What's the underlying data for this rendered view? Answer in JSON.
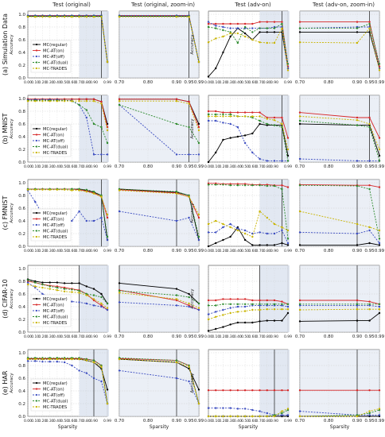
{
  "figure": {
    "column_titles": [
      "Test (original)",
      "Test (original, zoom-in)",
      "Test (adv-on)",
      "Test (adv-on, zoom-in)"
    ],
    "row_labels": [
      "(a) Simulation Data",
      "(b) MNIST",
      "(c) FMNIST",
      "(d) CIFAR-10",
      "(e) HAR"
    ],
    "ylabel": "Accuracy",
    "xlabel": "Sparsity",
    "colors": {
      "regular": "#000000",
      "on": "#d62728",
      "off": "#3b4cc0",
      "dual": "#2e8b2e",
      "trades": "#c8b400"
    }
  },
  "chart_data": {
    "type": "line",
    "x_full": [
      0.0,
      0.1,
      0.2,
      0.3,
      0.4,
      0.5,
      0.6,
      0.7,
      0.8,
      0.9,
      0.95,
      0.99
    ],
    "x_zoom": [
      0.7,
      0.9,
      0.95,
      0.99
    ],
    "xticks_full": [
      "0.00",
      "0.10",
      "0.20",
      "0.30",
      "0.40",
      "0.50",
      "0.60",
      "0.70",
      "0.80",
      "0.90",
      "0.99"
    ],
    "xticks_zoom": [
      "0.70",
      "0.80",
      "0.90",
      "0.95",
      "0.99"
    ],
    "yticks": [
      "0.0",
      "0.2",
      "0.4",
      "0.6",
      "0.8",
      "1.0"
    ],
    "ylim": [
      0,
      1.05
    ],
    "legend": [
      "MC(regular)",
      "MC-AT(on)",
      "MC-AT(off)",
      "MC-AT(dual)",
      "MC-TRADES"
    ],
    "rows": [
      {
        "name": "(a) Simulation Data",
        "vline_full": 0.95,
        "vline_zoom": 0.95,
        "vline_adv": 0.95,
        "vline_advzoom": 0.95,
        "shade_full": [
          0.7,
          0.99
        ],
        "shade_adv": [
          0.7,
          0.99
        ],
        "series": [
          {
            "key": "regular",
            "original": [
              0.97,
              0.97,
              0.97,
              0.97,
              0.97,
              0.97,
              0.97,
              0.97,
              0.97,
              0.97,
              0.97,
              0.25
            ],
            "adv": [
              0.02,
              0.15,
              0.4,
              0.65,
              0.78,
              0.7,
              0.6,
              0.72,
              0.72,
              0.72,
              0.72,
              0.15
            ]
          },
          {
            "key": "on",
            "original": [
              0.98,
              0.98,
              0.98,
              0.98,
              0.98,
              0.98,
              0.98,
              0.98,
              0.98,
              0.98,
              0.98,
              0.25
            ],
            "adv": [
              0.85,
              0.85,
              0.85,
              0.85,
              0.85,
              0.85,
              0.85,
              0.88,
              0.88,
              0.88,
              0.88,
              0.18
            ]
          },
          {
            "key": "off",
            "original": [
              0.98,
              0.98,
              0.98,
              0.98,
              0.98,
              0.98,
              0.98,
              0.98,
              0.98,
              0.98,
              0.98,
              0.25
            ],
            "adv": [
              0.88,
              0.82,
              0.8,
              0.78,
              0.78,
              0.78,
              0.78,
              0.78,
              0.78,
              0.8,
              0.8,
              0.15
            ]
          },
          {
            "key": "dual",
            "original": [
              0.97,
              0.97,
              0.97,
              0.97,
              0.97,
              0.97,
              0.97,
              0.97,
              0.97,
              0.97,
              0.97,
              0.25
            ],
            "adv": [
              0.8,
              0.78,
              0.75,
              0.72,
              0.55,
              0.8,
              0.72,
              0.78,
              0.78,
              0.78,
              0.85,
              0.22
            ]
          },
          {
            "key": "trades",
            "original": [
              0.96,
              0.96,
              0.96,
              0.96,
              0.96,
              0.96,
              0.96,
              0.96,
              0.96,
              0.96,
              0.96,
              0.25
            ],
            "adv": [
              0.56,
              0.62,
              0.65,
              0.7,
              0.7,
              0.65,
              0.6,
              0.56,
              0.55,
              0.55,
              0.78,
              0.12
            ]
          }
        ]
      },
      {
        "name": "(b) MNIST",
        "vline_full": 0.95,
        "vline_zoom": 0.95,
        "vline_adv": 0.95,
        "vline_advzoom": 0.95,
        "shade_full": [
          0.7,
          0.99
        ],
        "shade_adv": [
          0.7,
          0.99
        ],
        "series": [
          {
            "key": "regular",
            "original": [
              0.99,
              0.99,
              0.99,
              0.99,
              0.99,
              0.99,
              0.99,
              0.99,
              0.99,
              0.99,
              0.95,
              0.6
            ],
            "adv": [
              0.0,
              0.15,
              0.35,
              0.38,
              0.4,
              0.42,
              0.45,
              0.6,
              0.58,
              0.58,
              0.58,
              0.1
            ]
          },
          {
            "key": "on",
            "original": [
              0.99,
              0.99,
              0.99,
              0.99,
              0.99,
              0.99,
              0.99,
              0.99,
              0.99,
              0.99,
              0.95,
              0.55
            ],
            "adv": [
              0.8,
              0.8,
              0.78,
              0.78,
              0.78,
              0.78,
              0.78,
              0.78,
              0.7,
              0.7,
              0.7,
              0.38
            ]
          },
          {
            "key": "off",
            "original": [
              0.98,
              0.98,
              0.98,
              0.98,
              0.98,
              0.97,
              0.97,
              0.9,
              0.7,
              0.12,
              0.12,
              0.12
            ],
            "adv": [
              0.65,
              0.65,
              0.62,
              0.6,
              0.55,
              0.3,
              0.15,
              0.05,
              0.02,
              0.02,
              0.02,
              0.02
            ]
          },
          {
            "key": "dual",
            "original": [
              0.97,
              0.97,
              0.97,
              0.97,
              0.97,
              0.97,
              0.96,
              0.9,
              0.82,
              0.6,
              0.55,
              0.3
            ],
            "adv": [
              0.75,
              0.75,
              0.75,
              0.75,
              0.72,
              0.72,
              0.7,
              0.65,
              0.6,
              0.58,
              0.55,
              0.02
            ]
          },
          {
            "key": "trades",
            "original": [
              0.96,
              0.96,
              0.96,
              0.96,
              0.96,
              0.96,
              0.96,
              0.96,
              0.96,
              0.96,
              0.92,
              0.5
            ],
            "adv": [
              0.72,
              0.72,
              0.72,
              0.72,
              0.72,
              0.72,
              0.72,
              0.72,
              0.68,
              0.66,
              0.6,
              0.2
            ]
          }
        ]
      },
      {
        "name": "(c) FMNIST",
        "vline_full": 0.95,
        "vline_zoom": 0.9,
        "vline_adv": 0.95,
        "vline_advzoom": 0.9,
        "shade_full": [
          0.7,
          0.99
        ],
        "shade_adv": [
          0.7,
          0.99
        ],
        "series": [
          {
            "key": "regular",
            "original": [
              0.9,
              0.9,
              0.9,
              0.9,
              0.9,
              0.9,
              0.9,
              0.9,
              0.88,
              0.85,
              0.8,
              0.1
            ],
            "adv": [
              0.0,
              0.05,
              0.1,
              0.15,
              0.3,
              0.1,
              0.02,
              0.02,
              0.02,
              0.02,
              0.05,
              0.02
            ]
          },
          {
            "key": "on",
            "original": [
              0.9,
              0.9,
              0.9,
              0.9,
              0.9,
              0.9,
              0.9,
              0.89,
              0.87,
              0.84,
              0.78,
              0.45
            ],
            "adv": [
              0.99,
              0.99,
              0.98,
              0.98,
              0.98,
              0.98,
              0.97,
              0.97,
              0.97,
              0.96,
              0.96,
              0.93
            ]
          },
          {
            "key": "off",
            "original": [
              0.88,
              0.7,
              0.5,
              0.48,
              0.5,
              0.4,
              0.4,
              0.55,
              0.4,
              0.4,
              0.45,
              0.1
            ],
            "adv": [
              0.22,
              0.22,
              0.3,
              0.35,
              0.28,
              0.25,
              0.2,
              0.22,
              0.2,
              0.2,
              0.25,
              0.05
            ]
          },
          {
            "key": "dual",
            "original": [
              0.9,
              0.9,
              0.9,
              0.9,
              0.9,
              0.9,
              0.9,
              0.9,
              0.89,
              0.86,
              0.8,
              0.15
            ],
            "adv": [
              0.97,
              0.97,
              0.97,
              0.96,
              0.96,
              0.96,
              0.96,
              0.96,
              0.95,
              0.95,
              0.9,
              0.12
            ]
          },
          {
            "key": "trades",
            "original": [
              0.89,
              0.89,
              0.89,
              0.89,
              0.89,
              0.89,
              0.88,
              0.88,
              0.86,
              0.83,
              0.78,
              0.5
            ],
            "adv": [
              0.35,
              0.4,
              0.35,
              0.3,
              0.25,
              0.2,
              0.15,
              0.55,
              0.45,
              0.35,
              0.3,
              0.25
            ]
          }
        ]
      },
      {
        "name": "(d) CIFAR-10",
        "vline_full": 0.7,
        "vline_zoom": 0.7,
        "vline_adv": 0.7,
        "vline_advzoom": 0.9,
        "shade_full": [
          0.7,
          0.99
        ],
        "shade_adv": [
          0.7,
          0.99
        ],
        "series": [
          {
            "key": "regular",
            "original": [
              0.83,
              0.8,
              0.78,
              0.78,
              0.78,
              0.77,
              0.77,
              0.77,
              0.72,
              0.68,
              0.6,
              0.45
            ],
            "adv": [
              0.02,
              0.05,
              0.08,
              0.12,
              0.15,
              0.15,
              0.15,
              0.17,
              0.18,
              0.18,
              0.18,
              0.3
            ]
          },
          {
            "key": "on",
            "original": [
              0.8,
              0.78,
              0.75,
              0.73,
              0.72,
              0.7,
              0.68,
              0.66,
              0.6,
              0.5,
              0.42,
              0.35
            ],
            "adv": [
              0.5,
              0.5,
              0.52,
              0.52,
              0.52,
              0.52,
              0.5,
              0.5,
              0.5,
              0.5,
              0.48,
              0.44
            ]
          },
          {
            "key": "off",
            "original": [
              0.78,
              0.7,
              0.6,
              0.55,
              0.52,
              0.5,
              0.48,
              0.47,
              0.45,
              0.42,
              0.4,
              0.35
            ],
            "adv": [
              0.28,
              0.32,
              0.35,
              0.38,
              0.4,
              0.4,
              0.42,
              0.42,
              0.42,
              0.42,
              0.42,
              0.4
            ]
          },
          {
            "key": "dual",
            "original": [
              0.82,
              0.78,
              0.75,
              0.72,
              0.7,
              0.68,
              0.67,
              0.65,
              0.6,
              0.58,
              0.55,
              0.45
            ],
            "adv": [
              0.42,
              0.42,
              0.44,
              0.44,
              0.44,
              0.44,
              0.44,
              0.44,
              0.44,
              0.44,
              0.44,
              0.44
            ]
          },
          {
            "key": "trades",
            "original": [
              0.75,
              0.72,
              0.7,
              0.68,
              0.66,
              0.64,
              0.63,
              0.62,
              0.58,
              0.52,
              0.45,
              0.38
            ],
            "adv": [
              0.2,
              0.24,
              0.27,
              0.3,
              0.32,
              0.33,
              0.35,
              0.35,
              0.36,
              0.36,
              0.36,
              0.36
            ]
          }
        ]
      },
      {
        "name": "(e) HAR",
        "vline_full": 0.9,
        "vline_zoom": 0.9,
        "vline_adv": 0.9,
        "vline_advzoom": 0.9,
        "shade_full": [
          0.7,
          0.99
        ],
        "shade_adv": [
          0.7,
          0.99
        ],
        "series": [
          {
            "key": "regular",
            "original": [
              0.9,
              0.9,
              0.9,
              0.9,
              0.9,
              0.9,
              0.9,
              0.9,
              0.88,
              0.85,
              0.75,
              0.42
            ],
            "adv": [
              0.0,
              0.0,
              0.0,
              0.0,
              0.0,
              0.0,
              0.0,
              0.0,
              0.0,
              0.0,
              0.0,
              0.0
            ]
          },
          {
            "key": "on",
            "original": [
              0.91,
              0.91,
              0.91,
              0.91,
              0.91,
              0.91,
              0.91,
              0.91,
              0.9,
              0.88,
              0.8,
              0.2
            ],
            "adv": [
              0.41,
              0.41,
              0.41,
              0.41,
              0.41,
              0.41,
              0.41,
              0.41,
              0.41,
              0.41,
              0.41,
              0.41
            ]
          },
          {
            "key": "off",
            "original": [
              0.87,
              0.87,
              0.86,
              0.86,
              0.86,
              0.85,
              0.8,
              0.72,
              0.68,
              0.6,
              0.55,
              0.2
            ],
            "adv": [
              0.13,
              0.13,
              0.13,
              0.13,
              0.12,
              0.12,
              0.1,
              0.08,
              0.05,
              0.02,
              0.02,
              0.02
            ]
          },
          {
            "key": "dual",
            "original": [
              0.92,
              0.92,
              0.92,
              0.92,
              0.92,
              0.92,
              0.92,
              0.92,
              0.9,
              0.88,
              0.8,
              0.2
            ],
            "adv": [
              0.0,
              0.0,
              0.0,
              0.0,
              0.0,
              0.0,
              0.0,
              0.0,
              0.0,
              0.02,
              0.05,
              0.1
            ]
          },
          {
            "key": "trades",
            "original": [
              0.9,
              0.9,
              0.9,
              0.9,
              0.9,
              0.9,
              0.9,
              0.9,
              0.88,
              0.85,
              0.78,
              0.2
            ],
            "adv": [
              0.0,
              0.0,
              0.0,
              0.0,
              0.0,
              0.0,
              0.0,
              0.0,
              0.0,
              0.0,
              0.08,
              0.12
            ]
          }
        ]
      }
    ]
  }
}
